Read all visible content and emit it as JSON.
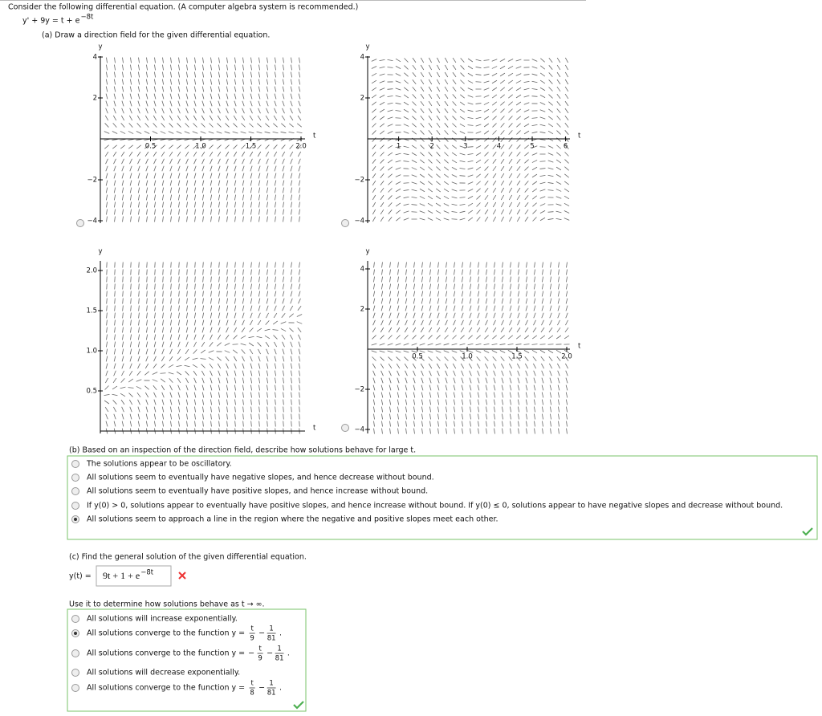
{
  "prompt": "Consider the following differential equation. (A computer algebra system is recommended.)",
  "equation": {
    "base": "y' + 9y = t + e",
    "exponent": "−8t"
  },
  "part_a": {
    "question": "(a) Draw a direction field for the given differential equation.",
    "plots": [
      {
        "y_label": "y",
        "t_label": "t",
        "t_ticks": [
          "0.5",
          "1.0",
          "1.5",
          "2.0"
        ],
        "y_ticks": [
          "4",
          "2",
          "−2",
          "−4"
        ]
      },
      {
        "y_label": "y",
        "t_label": "t",
        "t_ticks": [
          "1",
          "2",
          "3",
          "4",
          "5",
          "6"
        ],
        "y_ticks": [
          "4",
          "2",
          "−2",
          "−4"
        ]
      },
      {
        "y_label": "y",
        "t_label": "t",
        "y_ticks": [
          "2.0",
          "1.5",
          "1.0",
          "0.5"
        ]
      },
      {
        "y_label": "y",
        "t_label": "t",
        "t_ticks": [
          "0.5",
          "1.0",
          "1.5",
          "2.0"
        ],
        "y_ticks": [
          "4",
          "2",
          "−2",
          "−4"
        ]
      }
    ]
  },
  "part_b": {
    "question": "(b) Based on an inspection of the direction field, describe how solutions behave for large t.",
    "options": [
      "The solutions appear to be oscillatory.",
      "All solutions seem to eventually have negative slopes, and hence decrease without bound.",
      "All solutions seem to eventually have positive slopes, and hence increase without bound.",
      "If y(0) > 0, solutions appear to eventually have positive slopes, and hence increase without bound. If y(0) ≤ 0, solutions appear to have negative slopes and decrease without bound.",
      "All solutions seem to approach a line in the region where the negative and positive slopes meet each other."
    ],
    "selected": 4
  },
  "part_c": {
    "question": "(c) Find the general solution of the given differential equation.",
    "answer_label": "y(t) =",
    "answer": {
      "base": "9t + 1 + e",
      "exponent": "−8t"
    },
    "followup": "Use it to determine how solutions behave as t → ∞.",
    "options": [
      {
        "text": "All solutions will increase exponentially."
      },
      {
        "text": "All solutions converge to the function y =",
        "fraction1": {
          "num": "t",
          "den": "9"
        },
        "operator": "−",
        "fraction2": {
          "num": "1",
          "den": "81"
        },
        "suffix": "."
      },
      {
        "text": "All solutions converge to the function y =",
        "sign": "−",
        "fraction1": {
          "num": "t",
          "den": "9"
        },
        "operator": "−",
        "fraction2": {
          "num": "1",
          "den": "81"
        },
        "suffix": "."
      },
      {
        "text": "All solutions will decrease exponentially."
      },
      {
        "text": "All solutions converge to the function y =",
        "fraction1": {
          "num": "t",
          "den": "8"
        },
        "operator": "−",
        "fraction2": {
          "num": "1",
          "den": "81"
        },
        "suffix": "."
      }
    ],
    "selected": 1
  }
}
